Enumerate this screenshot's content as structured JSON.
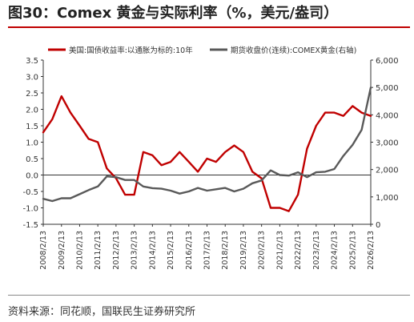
{
  "figure": {
    "title": "图30：Comex 黄金与实际利率（%，美元/盎司）",
    "source": "资料来源：同花顺，国联民生证券研究所"
  },
  "chart_data": {
    "type": "line",
    "title": "",
    "xlabel": "",
    "ylabel_left": "",
    "ylabel_right": "",
    "x_ticks": [
      "2008/2/13",
      "2009/2/13",
      "2010/2/13",
      "2011/2/13",
      "2012/2/13",
      "2013/2/13",
      "2014/2/13",
      "2015/2/13",
      "2016/2/13",
      "2017/2/13",
      "2018/2/13",
      "2019/2/13",
      "2020/2/13",
      "2021/2/13",
      "2022/2/13",
      "2023/2/13",
      "2024/2/13",
      "2025/2/13",
      "2026/2/13"
    ],
    "y_left_ticks": [
      "-1.5",
      "-1.0",
      "-0.5",
      "0.0",
      "0.5",
      "1.0",
      "1.5",
      "2.0",
      "2.5",
      "3.0",
      "3.5"
    ],
    "y_right_ticks": [
      "0",
      "1,000",
      "2,000",
      "3,000",
      "4,000",
      "5,000",
      "6,000"
    ],
    "ylim_left": [
      -1.5,
      3.5
    ],
    "ylim_right": [
      0,
      6000
    ],
    "xlim": [
      "2008-02-13",
      "2026-02-13"
    ],
    "grid": false,
    "legend_position": "top",
    "x": [
      "2008-02-13",
      "2008-08-13",
      "2009-02-13",
      "2009-08-13",
      "2010-02-13",
      "2010-08-13",
      "2011-02-13",
      "2011-08-13",
      "2012-02-13",
      "2012-08-13",
      "2013-02-13",
      "2013-08-13",
      "2014-02-13",
      "2014-08-13",
      "2015-02-13",
      "2015-08-13",
      "2016-02-13",
      "2016-08-13",
      "2017-02-13",
      "2017-08-13",
      "2018-02-13",
      "2018-08-13",
      "2019-02-13",
      "2019-08-13",
      "2020-02-13",
      "2020-08-13",
      "2021-02-13",
      "2021-08-13",
      "2022-02-13",
      "2022-08-13",
      "2023-02-13",
      "2023-08-13",
      "2024-02-13",
      "2024-08-13",
      "2025-02-13",
      "2025-08-13",
      "2026-02-13"
    ],
    "series": [
      {
        "name": "美国:国债收益率:以通胀为标的:10年",
        "axis": "left",
        "color": "#c00000",
        "values": [
          1.3,
          1.7,
          2.4,
          1.9,
          1.5,
          1.1,
          1.0,
          0.2,
          -0.1,
          -0.6,
          -0.6,
          0.7,
          0.6,
          0.3,
          0.4,
          0.7,
          0.4,
          0.1,
          0.5,
          0.4,
          0.7,
          0.9,
          0.7,
          0.1,
          -0.1,
          -1.0,
          -1.0,
          -1.1,
          -0.6,
          0.8,
          1.5,
          1.9,
          1.9,
          1.8,
          2.1,
          1.9,
          1.8
        ]
      },
      {
        "name": "期货收盘价(连续):COMEX黄金(右轴)",
        "axis": "right",
        "color": "#595959",
        "values": [
          930,
          850,
          950,
          950,
          1100,
          1250,
          1380,
          1750,
          1720,
          1620,
          1620,
          1380,
          1320,
          1300,
          1230,
          1120,
          1200,
          1330,
          1230,
          1280,
          1330,
          1200,
          1300,
          1500,
          1600,
          1970,
          1800,
          1780,
          1900,
          1720,
          1900,
          1920,
          2020,
          2500,
          2900,
          3450,
          5000
        ]
      }
    ]
  }
}
